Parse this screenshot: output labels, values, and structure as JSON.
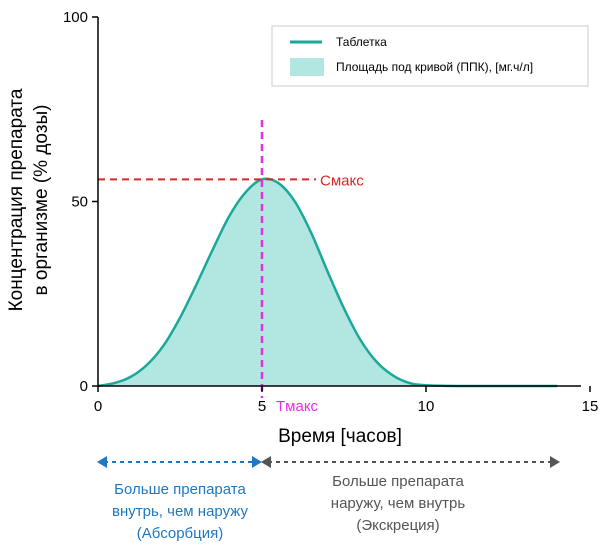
{
  "chart_data": {
    "type": "area",
    "title": "",
    "xlabel": "Время [часов]",
    "ylabel_line1": "Концентрация препарата",
    "ylabel_line2": "в организме (% дозы)",
    "xlim": [
      0,
      15
    ],
    "ylim": [
      0,
      100
    ],
    "x_ticks": [
      0,
      5,
      10,
      15
    ],
    "y_ticks": [
      0,
      50,
      100
    ],
    "grid": false,
    "legend_placement": "top-right",
    "series": [
      {
        "name": "Таблетка",
        "color": "#1aa89a",
        "x": [
          0,
          0.5,
          1,
          1.5,
          2,
          2.5,
          3,
          3.5,
          4,
          4.5,
          5,
          5.5,
          6,
          6.5,
          7,
          7.5,
          8,
          8.5,
          9,
          9.5,
          10,
          11,
          12,
          13,
          14
        ],
        "y": [
          0,
          0.8,
          2.5,
          5.8,
          11,
          18.5,
          27.5,
          37,
          46,
          52.5,
          56,
          55,
          50,
          41.5,
          31,
          21,
          12.5,
          6.5,
          2.8,
          0.8,
          0.2,
          0,
          0,
          0,
          0
        ]
      }
    ],
    "area_fill": {
      "name": "Площадь под кривой (ППК), [мг.ч/л]",
      "color": "#b2e6e0"
    },
    "cmax": {
      "label": "Cмакс",
      "value": 56,
      "color": "#d62828"
    },
    "tmax": {
      "label": "Tмакс",
      "value": 5,
      "color": "#e62ee6"
    }
  },
  "annotations": {
    "absorption_lines": [
      "Больше препарата",
      "внутрь, чем наружу",
      "(Абсорбция)"
    ],
    "absorption_color": "#1f78c1",
    "excretion_lines": [
      "Больше препарата",
      "наружу, чем внутрь",
      "(Экскреция)"
    ],
    "excretion_color": "#555555"
  }
}
